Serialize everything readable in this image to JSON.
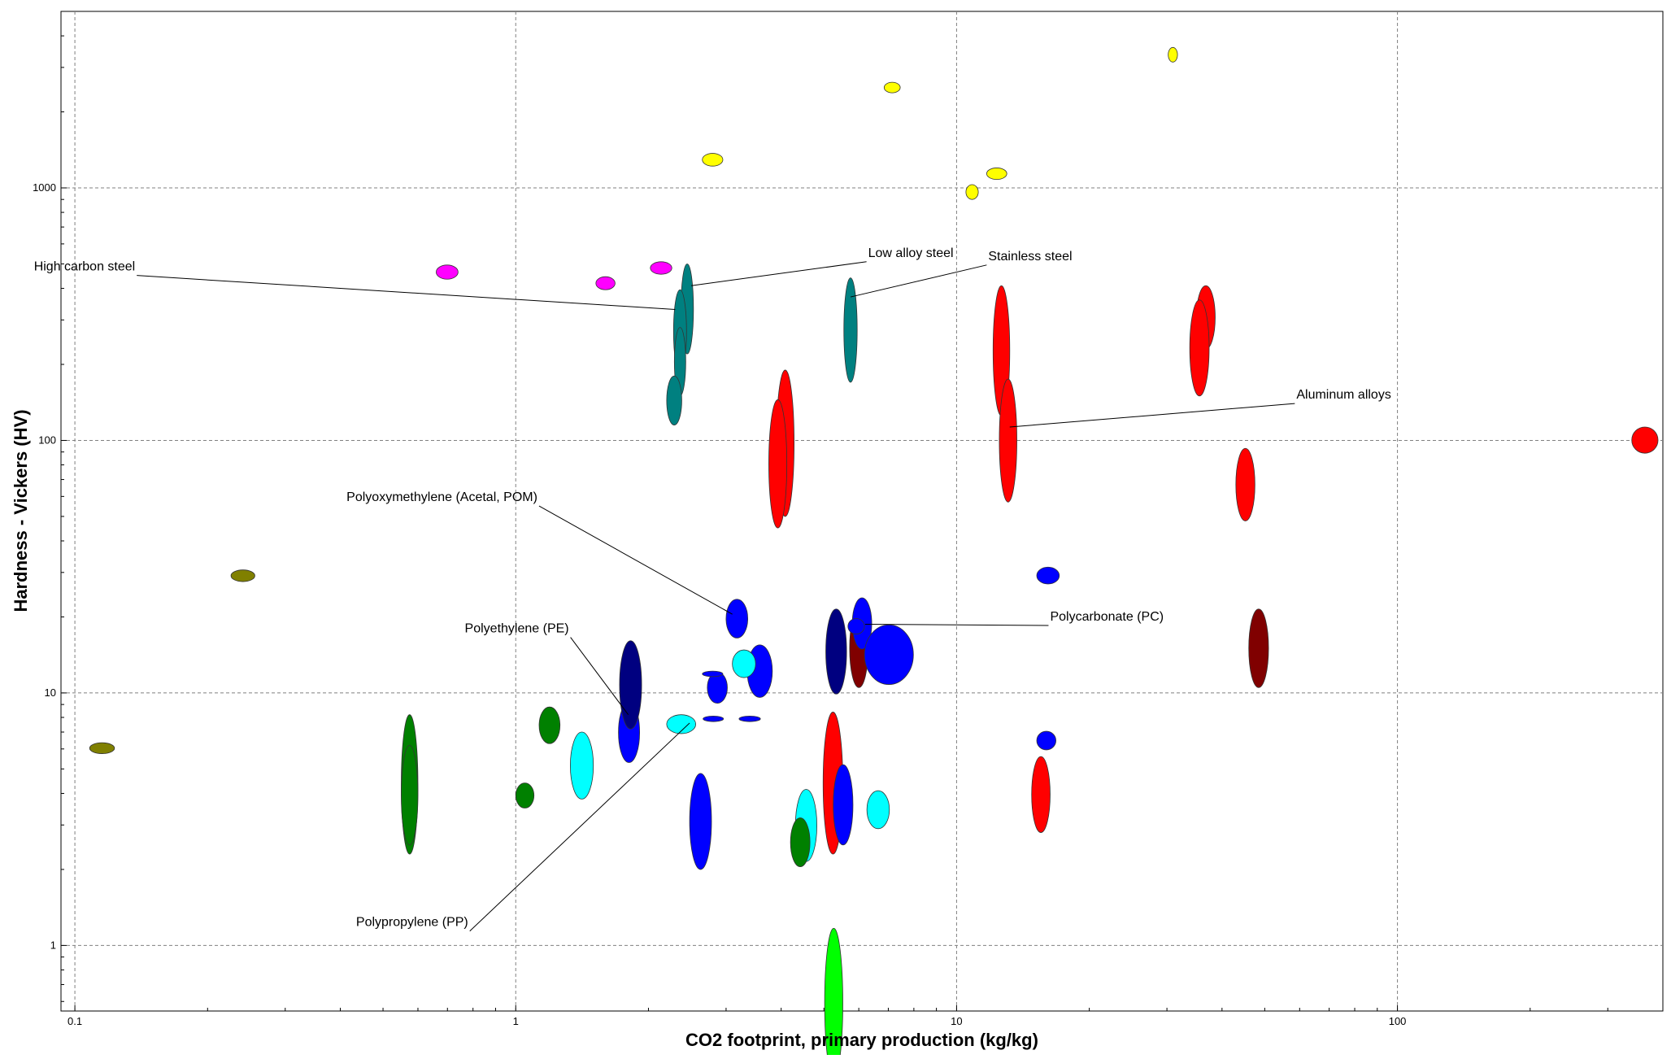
{
  "chart_data": {
    "type": "scatter",
    "xlabel": "CO2 footprint, primary production (kg/kg)",
    "ylabel": "Hardness - Vickers (HV)",
    "x_scale": "log",
    "y_scale": "log",
    "xlim": [
      0.093,
      400
    ],
    "ylim": [
      0.55,
      5000
    ],
    "x_ticks": [
      {
        "v": 0.1,
        "label": "0.1"
      },
      {
        "v": 1,
        "label": "1"
      },
      {
        "v": 10,
        "label": "10"
      },
      {
        "v": 100,
        "label": "100"
      }
    ],
    "y_ticks": [
      {
        "v": 1,
        "label": "1"
      },
      {
        "v": 10,
        "label": "10"
      },
      {
        "v": 100,
        "label": "100"
      },
      {
        "v": 1000,
        "label": "1000"
      }
    ],
    "grid": true,
    "colors": {
      "ceramic": "#ffff00",
      "metal_ferrous": "#008080",
      "metal_nonferrous": "#ff0000",
      "metal_precious": "#800000",
      "polymer": "#0000ff",
      "polymer_dark": "#000080",
      "polymer_light": "#00ffff",
      "elastomer": "#008000",
      "foam": "#00ff00",
      "natural": "#808000",
      "glass": "#ff00ff"
    },
    "bubbles": [
      {
        "group": "ceramic",
        "x": [
          30.2,
          31.7
        ],
        "y": [
          3150,
          3600
        ]
      },
      {
        "group": "ceramic",
        "x": [
          6.85,
          7.45
        ],
        "y": [
          2380,
          2620
        ]
      },
      {
        "group": "ceramic",
        "x": [
          2.65,
          2.95
        ],
        "y": [
          1220,
          1370
        ]
      },
      {
        "group": "ceramic",
        "x": [
          11.7,
          13.0
        ],
        "y": [
          1080,
          1200
        ]
      },
      {
        "group": "ceramic",
        "x": [
          10.5,
          11.2
        ],
        "y": [
          900,
          1030
        ]
      },
      {
        "group": "glass",
        "x": [
          0.66,
          0.74
        ],
        "y": [
          435,
          495
        ]
      },
      {
        "group": "glass",
        "x": [
          1.52,
          1.68
        ],
        "y": [
          395,
          445
        ]
      },
      {
        "group": "glass",
        "x": [
          2.02,
          2.26
        ],
        "y": [
          455,
          510
        ]
      },
      {
        "group": "metal_ferrous",
        "x": [
          2.37,
          2.53
        ],
        "y": [
          220,
          500
        ]
      },
      {
        "group": "metal_ferrous",
        "x": [
          2.28,
          2.44
        ],
        "y": [
          185,
          395
        ]
      },
      {
        "group": "metal_ferrous",
        "x": [
          2.29,
          2.43
        ],
        "y": [
          150,
          280
        ]
      },
      {
        "group": "metal_ferrous",
        "x": [
          2.2,
          2.38
        ],
        "y": [
          115,
          180
        ]
      },
      {
        "group": "metal_ferrous",
        "x": [
          5.55,
          5.95
        ],
        "y": [
          170,
          440
        ]
      },
      {
        "group": "metal_nonferrous",
        "x": [
          12.1,
          13.2
        ],
        "y": [
          125,
          410
        ]
      },
      {
        "group": "metal_nonferrous",
        "x": [
          12.5,
          13.7
        ],
        "y": [
          57,
          175
        ]
      },
      {
        "group": "metal_nonferrous",
        "x": [
          3.9,
          4.28
        ],
        "y": [
          50,
          190
        ]
      },
      {
        "group": "metal_nonferrous",
        "x": [
          3.75,
          4.12
        ],
        "y": [
          45,
          145
        ]
      },
      {
        "group": "metal_nonferrous",
        "x": [
          35.0,
          38.6
        ],
        "y": [
          230,
          410
        ]
      },
      {
        "group": "metal_nonferrous",
        "x": [
          33.8,
          37.4
        ],
        "y": [
          150,
          360
        ]
      },
      {
        "group": "metal_nonferrous",
        "x": [
          43.0,
          47.5
        ],
        "y": [
          48,
          93
        ]
      },
      {
        "group": "metal_nonferrous",
        "x": [
          340,
          390
        ],
        "y": [
          89,
          113
        ]
      },
      {
        "group": "metal_nonferrous",
        "x": [
          4.98,
          5.52
        ],
        "y": [
          2.3,
          8.4
        ]
      },
      {
        "group": "metal_nonferrous",
        "x": [
          14.8,
          16.3
        ],
        "y": [
          2.8,
          5.6
        ]
      },
      {
        "group": "metal_precious",
        "x": [
          5.72,
          6.3
        ],
        "y": [
          10.5,
          21.5
        ]
      },
      {
        "group": "metal_precious",
        "x": [
          46.0,
          51.0
        ],
        "y": [
          10.5,
          21.5
        ]
      },
      {
        "group": "polymer",
        "x": [
          3.0,
          3.36
        ],
        "y": [
          16.5,
          23.5
        ]
      },
      {
        "group": "polymer",
        "x": [
          3.35,
          3.82
        ],
        "y": [
          9.6,
          15.5
        ]
      },
      {
        "group": "polymer",
        "x": [
          2.72,
          3.02
        ],
        "y": [
          9.1,
          12.1
        ]
      },
      {
        "group": "polymer",
        "x": [
          2.65,
          2.95
        ],
        "y": [
          11.6,
          12.2
        ]
      },
      {
        "group": "polymer",
        "x": [
          2.66,
          2.96
        ],
        "y": [
          7.7,
          8.1
        ]
      },
      {
        "group": "polymer",
        "x": [
          3.21,
          3.59
        ],
        "y": [
          7.7,
          8.1
        ]
      },
      {
        "group": "polymer",
        "x": [
          1.71,
          1.91
        ],
        "y": [
          5.3,
          9.2
        ]
      },
      {
        "group": "polymer",
        "x": [
          2.48,
          2.78
        ],
        "y": [
          2.0,
          4.8
        ]
      },
      {
        "group": "polymer",
        "x": [
          5.8,
          6.42
        ],
        "y": [
          14.9,
          23.8
        ]
      },
      {
        "group": "polymer",
        "x": [
          5.67,
          6.18
        ],
        "y": [
          17.1,
          19.7
        ]
      },
      {
        "group": "polymer",
        "x": [
          6.18,
          7.98
        ],
        "y": [
          10.8,
          18.6
        ]
      },
      {
        "group": "polymer",
        "x": [
          5.25,
          5.82
        ],
        "y": [
          2.5,
          5.2
        ]
      },
      {
        "group": "polymer",
        "x": [
          15.2,
          16.8
        ],
        "y": [
          5.95,
          7.05
        ]
      },
      {
        "group": "polymer",
        "x": [
          15.2,
          17.1
        ],
        "y": [
          27,
          31.5
        ]
      },
      {
        "group": "polymer_dark",
        "x": [
          1.72,
          1.93
        ],
        "y": [
          7.2,
          16.1
        ]
      },
      {
        "group": "polymer_dark",
        "x": [
          5.05,
          5.63
        ],
        "y": [
          9.9,
          21.5
        ]
      },
      {
        "group": "polymer_light",
        "x": [
          3.1,
          3.5
        ],
        "y": [
          11.5,
          14.8
        ]
      },
      {
        "group": "polymer_light",
        "x": [
          2.2,
          2.56
        ],
        "y": [
          6.9,
          8.2
        ]
      },
      {
        "group": "polymer_light",
        "x": [
          1.33,
          1.5
        ],
        "y": [
          3.8,
          7.0
        ]
      },
      {
        "group": "polymer_light",
        "x": [
          4.31,
          4.82
        ],
        "y": [
          2.15,
          4.15
        ]
      },
      {
        "group": "polymer_light",
        "x": [
          6.26,
          7.04
        ],
        "y": [
          2.9,
          4.1
        ]
      },
      {
        "group": "elastomer",
        "x": [
          0.55,
          0.6
        ],
        "y": [
          2.3,
          8.2
        ]
      },
      {
        "group": "elastomer",
        "x": [
          0.55,
          0.6
        ],
        "y": [
          2.5,
          6.2
        ]
      },
      {
        "group": "elastomer",
        "x": [
          1.13,
          1.26
        ],
        "y": [
          6.3,
          8.8
        ]
      },
      {
        "group": "elastomer",
        "x": [
          1.0,
          1.1
        ],
        "y": [
          3.5,
          4.4
        ]
      },
      {
        "group": "elastomer",
        "x": [
          4.2,
          4.65
        ],
        "y": [
          2.05,
          3.2
        ]
      },
      {
        "group": "foam",
        "x": [
          5.02,
          5.52
        ],
        "y": [
          0.3,
          1.17
        ]
      },
      {
        "group": "natural",
        "x": [
          0.226,
          0.256
        ],
        "y": [
          27.6,
          30.7
        ]
      },
      {
        "group": "natural",
        "x": [
          0.108,
          0.123
        ],
        "y": [
          5.75,
          6.35
        ]
      }
    ],
    "annotations": [
      {
        "text": "High carbon steel",
        "label_at": [
          0.137,
          450
        ],
        "point_at": [
          2.3,
          330
        ]
      },
      {
        "text": "Low alloy steel",
        "label_at": [
          6.3,
          510
        ],
        "point_at": [
          2.5,
          410
        ]
      },
      {
        "text": "Stainless steel",
        "label_at": [
          11.8,
          495
        ],
        "point_at": [
          5.75,
          370
        ]
      },
      {
        "text": "Aluminum alloys",
        "label_at": [
          59,
          140
        ],
        "point_at": [
          13.2,
          113
        ]
      },
      {
        "text": "Polyoxymethylene (Acetal, POM)",
        "label_at": [
          1.12,
          55
        ],
        "point_at": [
          3.1,
          20.5
        ]
      },
      {
        "text": "Polycarbonate (PC)",
        "label_at": [
          16.3,
          18.5
        ],
        "point_at": [
          6.2,
          18.7
        ]
      },
      {
        "text": "Polyethylene (PE)",
        "label_at": [
          1.32,
          16.6
        ],
        "point_at": [
          1.8,
          8.2
        ]
      },
      {
        "text": "Polypropylene (PP)",
        "label_at": [
          0.78,
          1.14
        ],
        "point_at": [
          2.48,
          7.6
        ]
      }
    ]
  }
}
